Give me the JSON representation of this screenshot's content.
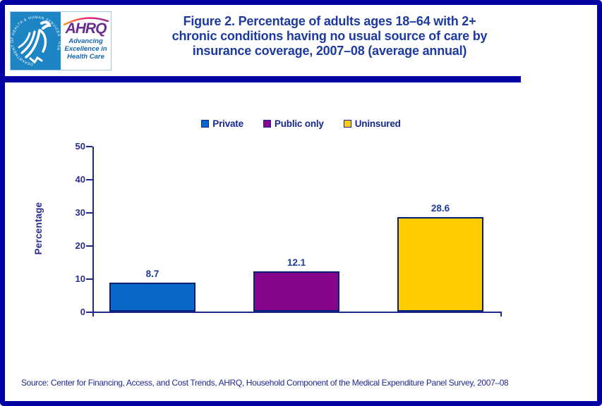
{
  "header": {
    "logo": {
      "hhs_ring_text": "DEPARTMENT OF HEALTH & HUMAN SERVICES · USA",
      "ahrq_acronym": "AHRQ",
      "tagline_lines": [
        "Advancing",
        "Excellence in",
        "Health Care"
      ]
    },
    "title_lines": [
      "Figure 2. Percentage of adults ages 18–64 with 2+",
      "chronic conditions having no usual source of care by",
      "insurance coverage, 2007–08 (average annual)"
    ]
  },
  "chart_data": {
    "type": "bar",
    "categories": [
      "Private",
      "Public only",
      "Uninsured"
    ],
    "values": [
      8.7,
      12.1,
      28.6
    ],
    "data_labels": [
      "8.7",
      "12.1",
      "28.6"
    ],
    "series_colors": [
      "#0A68C9",
      "#87058B",
      "#FFCC00"
    ],
    "title": "Figure 2. Percentage of adults ages 18–64 with 2+ chronic conditions having no usual source of care by insurance coverage, 2007–08 (average annual)",
    "xlabel": "",
    "ylabel": "Percentage",
    "ylim": [
      0,
      50
    ],
    "yticks": [
      0,
      10,
      20,
      30,
      40,
      50
    ],
    "grid": false,
    "legend_position": "top"
  },
  "footer": {
    "source": "Source: Center for Financing, Access, and Cost Trends, AHRQ, Household Component of the Medical Expenditure Panel Survey, 2007–08"
  },
  "colors": {
    "frame_navy": "#0000A3",
    "title_text": "#1C3AA0",
    "axis_navy": "#20288C",
    "bar_border": "#00217A",
    "hhs_blue": "#1E85C4",
    "ahrq_purple": "#6A2C91",
    "tagline_blue": "#1565AE"
  }
}
